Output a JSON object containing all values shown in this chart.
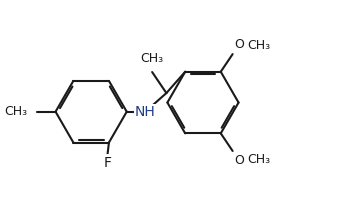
{
  "bg_color": "#ffffff",
  "bond_color": "#1a1a1a",
  "nh_color": "#1e3a8a",
  "lw": 1.5,
  "dbo": 0.06,
  "fs": 10,
  "figsize": [
    3.46,
    2.19
  ],
  "dpi": 100,
  "xlim": [
    0,
    10
  ],
  "ylim": [
    0,
    6.33
  ],
  "r": 1.05
}
